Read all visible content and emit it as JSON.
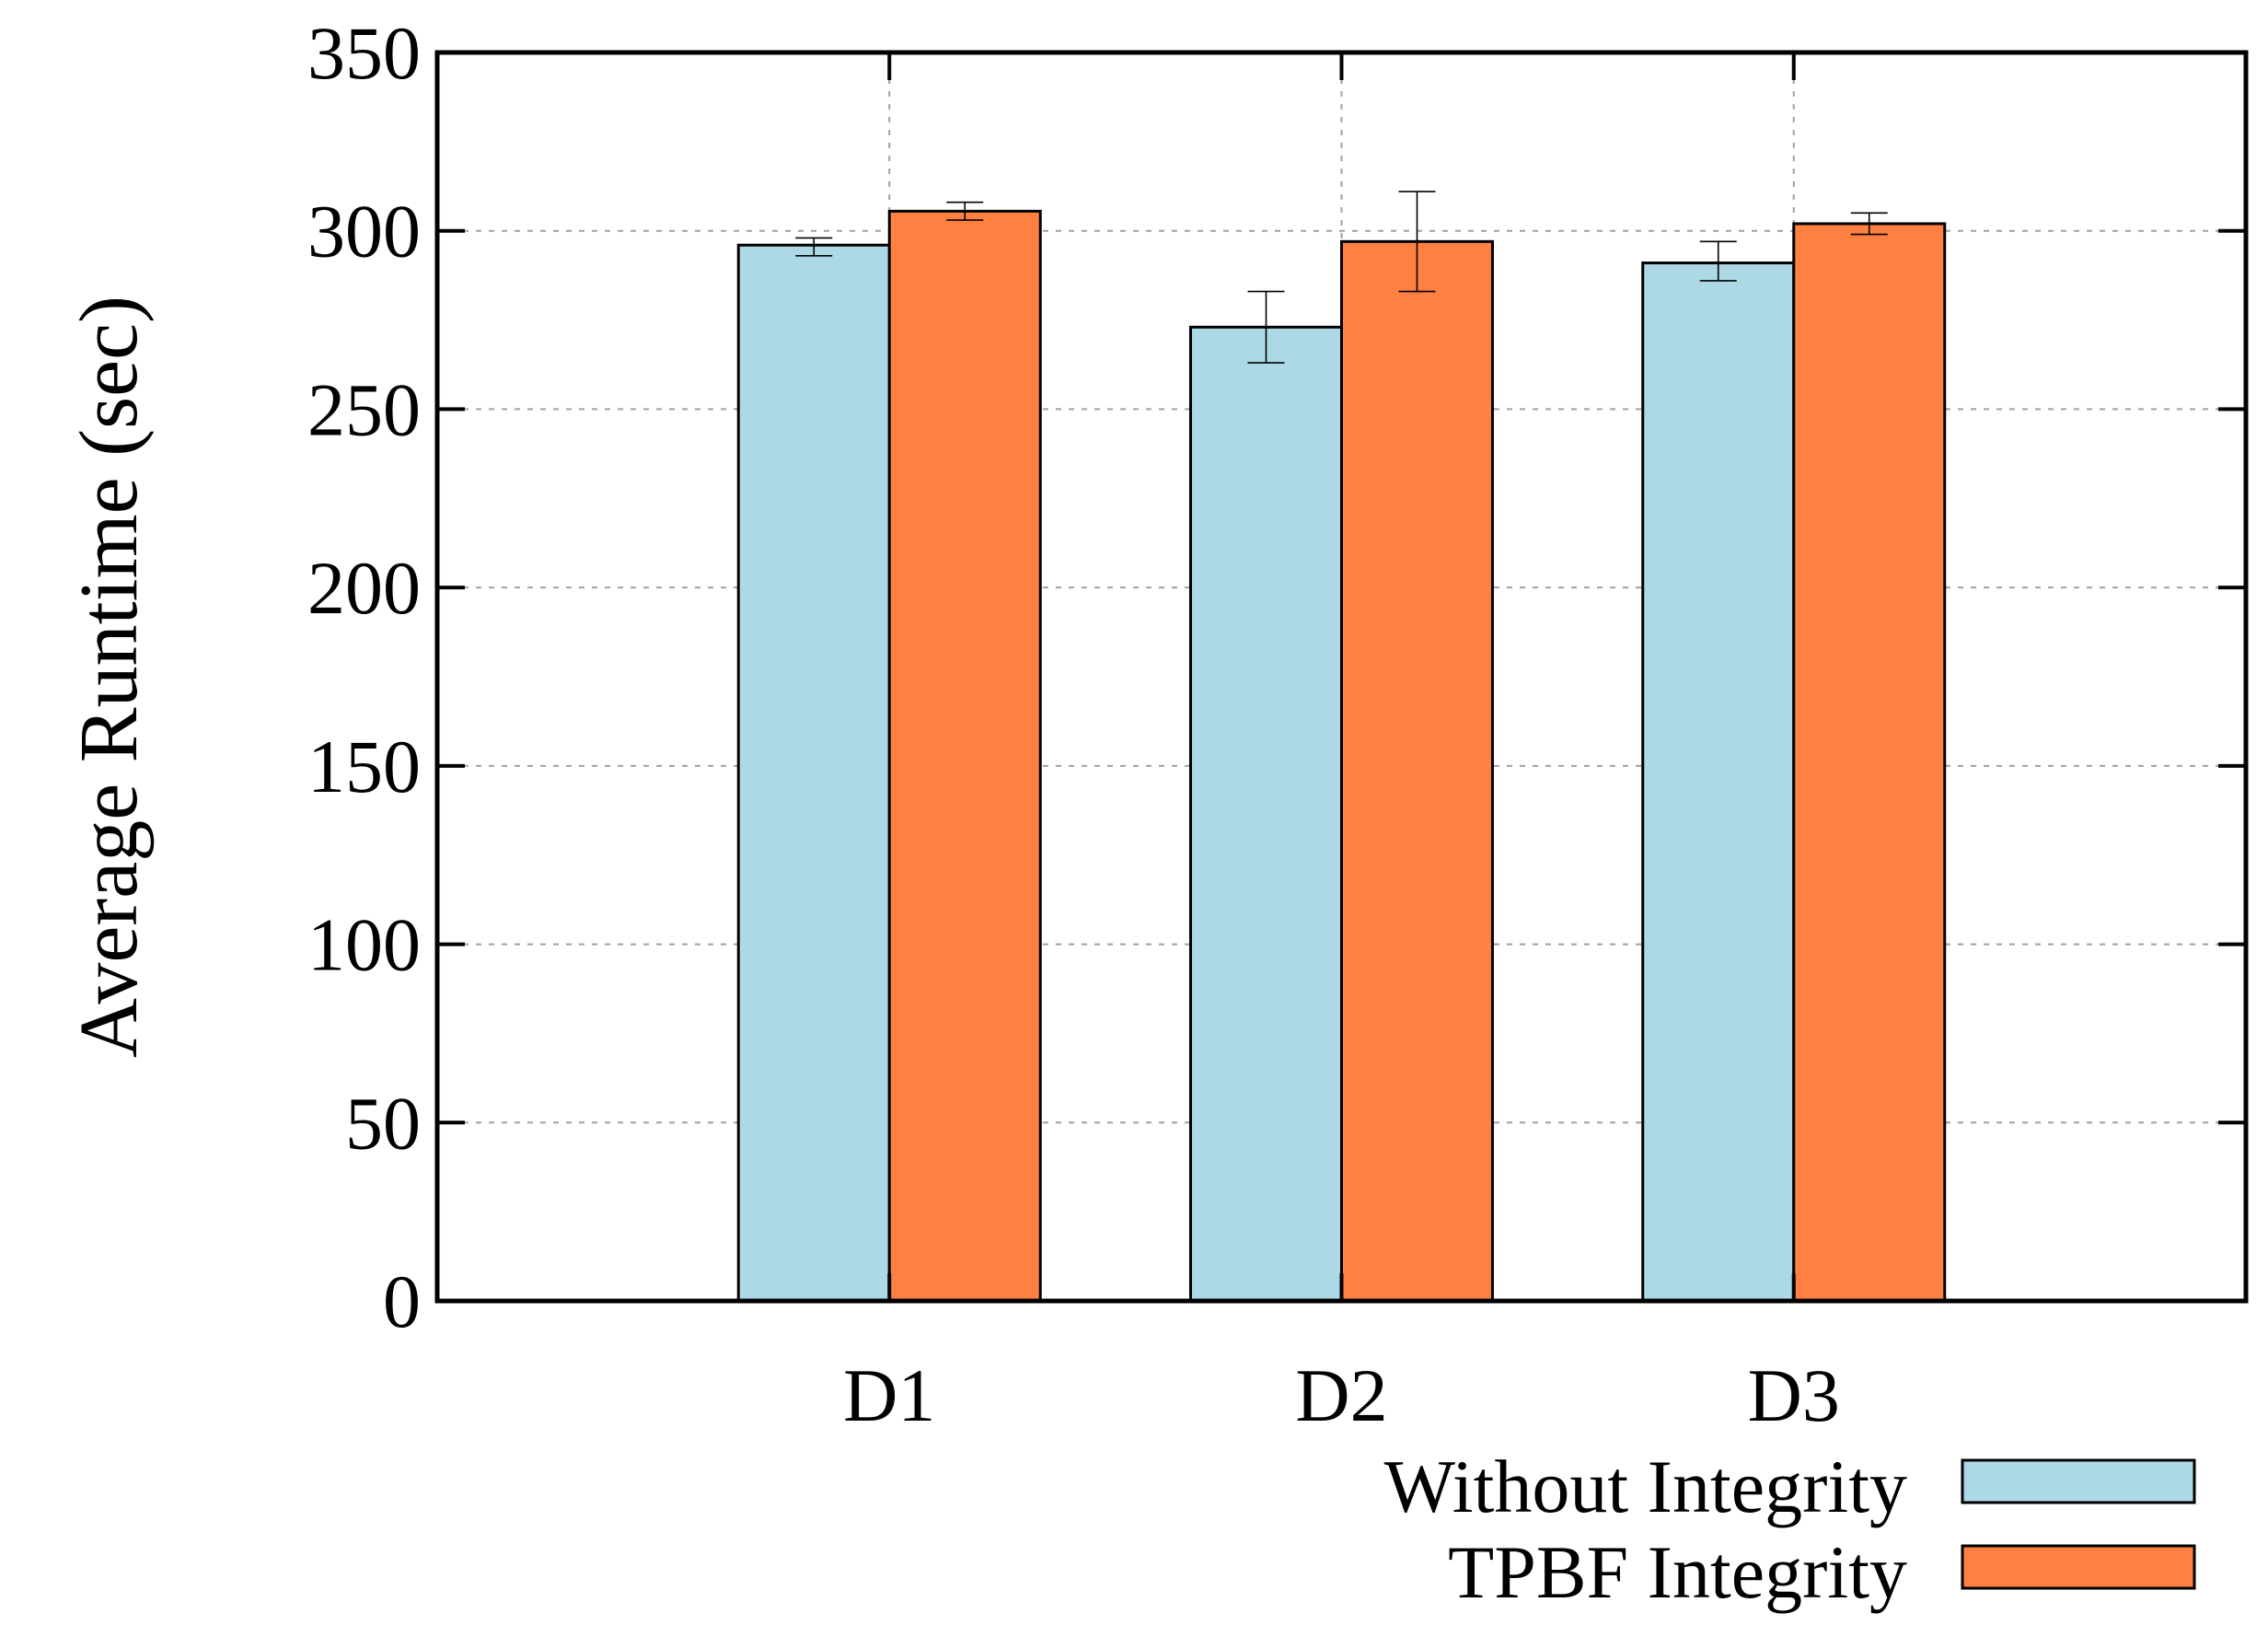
{
  "chart_data": {
    "type": "bar",
    "title": "",
    "xlabel": "",
    "ylabel": "Average Runtime (sec)",
    "ylim": [
      0,
      350
    ],
    "yticks": [
      0,
      50,
      100,
      150,
      200,
      250,
      300,
      350
    ],
    "ytick_labels": [
      "0",
      "50",
      "100",
      "150",
      "200",
      "250",
      "300",
      "350"
    ],
    "grid": true,
    "legend_position": "bottom-right",
    "categories": [
      "D1",
      "D2",
      "D3"
    ],
    "series": [
      {
        "name": "Without Integrity",
        "color": "#add8e6",
        "values": [
          296,
          273,
          291
        ],
        "error_low": [
          293,
          263,
          286
        ],
        "error_high": [
          298,
          283,
          297
        ]
      },
      {
        "name": "TPBF Integrity",
        "color": "#ff8040",
        "values": [
          305.5,
          297,
          302
        ],
        "error_low": [
          303,
          283,
          299
        ],
        "error_high": [
          308,
          311,
          305
        ]
      }
    ]
  }
}
